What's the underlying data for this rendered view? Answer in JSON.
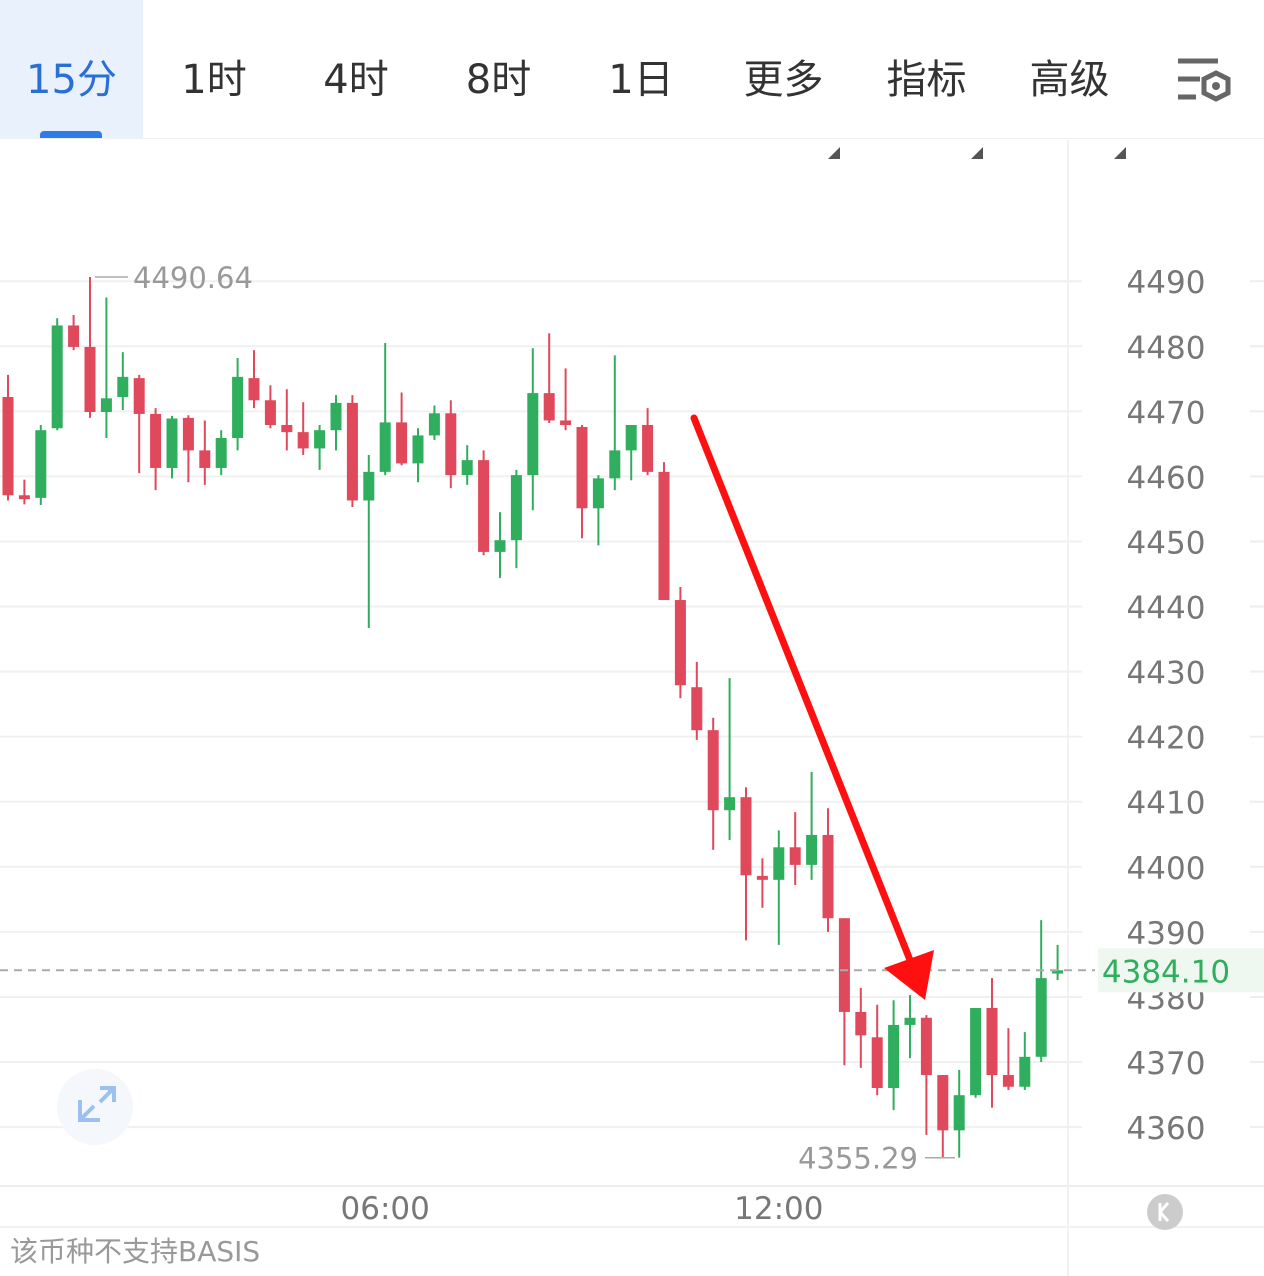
{
  "tabs": [
    "15分",
    "1时",
    "4时",
    "8时",
    "1日",
    "更多",
    "指标",
    "高级"
  ],
  "footnote": "该币种不支持BASIS",
  "chart_data": {
    "type": "candlestick",
    "categories": [
      null,
      null,
      null,
      null,
      null,
      null,
      null,
      null,
      null,
      null,
      null,
      null,
      null,
      null,
      null,
      null,
      null,
      null,
      null,
      null,
      null,
      null,
      null,
      "06:00",
      null,
      null,
      null,
      null,
      null,
      null,
      null,
      null,
      null,
      null,
      null,
      null,
      null,
      null,
      null,
      null,
      null,
      null,
      null,
      null,
      null,
      null,
      null,
      "12:00",
      null,
      null,
      null,
      null,
      null,
      null,
      null,
      null,
      null,
      null,
      null,
      null,
      null,
      null,
      null,
      null,
      null
    ],
    "open": [
      4472.2,
      4457.1,
      4456.7,
      4467.4,
      4483.2,
      4479.9,
      4469.9,
      4472.2,
      4475.1,
      4469.6,
      4461.3,
      4469.0,
      4464.0,
      4461.3,
      4465.9,
      4475.1,
      4471.7,
      4467.9,
      4466.8,
      4464.3,
      4467.1,
      4471.3,
      4456.3,
      4460.7,
      4468.3,
      4462.0,
      4466.3,
      4469.7,
      4460.2,
      4462.5,
      4448.4,
      4450.2,
      4460.2,
      4472.8,
      4468.6,
      4467.6,
      4455.1,
      4459.7,
      4464.0,
      4467.9,
      4460.7,
      4441.0,
      4427.6,
      4421.0,
      4408.7,
      4410.7,
      4398.6,
      4398.0,
      4403.0,
      4400.3,
      4404.9,
      4392.1,
      4377.7,
      4373.8,
      4366.0,
      4375.7,
      4376.8,
      4368.0,
      4359.5,
      4364.9,
      4378.3,
      4368.0,
      4366.2,
      4370.8,
      4383.6
    ],
    "high": [
      4475.6,
      4459.5,
      4467.9,
      4484.3,
      4484.8,
      4490.64,
      4487.5,
      4479.1,
      4475.6,
      4470.5,
      4469.3,
      4469.4,
      4468.6,
      4467.1,
      4478.2,
      4479.4,
      4474.0,
      4473.4,
      4471.4,
      4467.9,
      4472.5,
      4472.5,
      4463.3,
      4480.5,
      4472.9,
      4467.4,
      4470.9,
      4471.7,
      4464.8,
      4464.0,
      4454.5,
      4461.0,
      4479.7,
      4482.0,
      4476.6,
      4467.9,
      4460.2,
      4478.6,
      4467.9,
      4470.5,
      4462.2,
      4443.0,
      4431.5,
      4422.9,
      4429.0,
      4412.2,
      4401.3,
      4405.6,
      4408.4,
      4414.6,
      4409.0,
      4392.1,
      4381.4,
      4378.8,
      4379.5,
      4380.3,
      4377.2,
      4368.0,
      4368.8,
      4378.3,
      4382.9,
      4375.2,
      4374.6,
      4391.8,
      4388.0
    ],
    "low": [
      4456.3,
      4455.7,
      4455.6,
      4467.1,
      4479.4,
      4469.0,
      4465.9,
      4470.2,
      4460.5,
      4457.9,
      4459.7,
      4459.1,
      4458.7,
      4460.2,
      4464.0,
      4470.5,
      4467.4,
      4464.0,
      4463.3,
      4461.0,
      4464.0,
      4455.3,
      4436.7,
      4460.2,
      4461.7,
      4459.1,
      4465.6,
      4458.2,
      4458.7,
      4447.9,
      4444.4,
      4445.9,
      4454.8,
      4468.2,
      4467.1,
      4450.5,
      4449.4,
      4457.9,
      4459.4,
      4460.2,
      4441.0,
      4425.9,
      4419.5,
      4402.6,
      4404.1,
      4388.7,
      4393.7,
      4388.0,
      4397.2,
      4398.0,
      4390.0,
      4369.5,
      4369.1,
      4364.9,
      4362.6,
      4370.6,
      4358.8,
      4355.29,
      4355.3,
      4364.5,
      4363.0,
      4365.7,
      4365.7,
      4370.0,
      4382.6
    ],
    "close": [
      4457.1,
      4456.5,
      4467.1,
      4483.2,
      4479.9,
      4469.9,
      4472.0,
      4475.3,
      4469.6,
      4461.3,
      4468.9,
      4464.0,
      4461.3,
      4465.9,
      4475.3,
      4471.7,
      4467.9,
      4466.8,
      4464.3,
      4467.1,
      4471.3,
      4456.3,
      4460.7,
      4468.3,
      4462.0,
      4466.3,
      4469.7,
      4460.2,
      4462.5,
      4448.4,
      4450.2,
      4460.2,
      4472.8,
      4468.6,
      4467.9,
      4455.1,
      4459.7,
      4464.0,
      4467.9,
      4460.7,
      4441.0,
      4427.9,
      4421.0,
      4408.7,
      4410.7,
      4398.7,
      4398.0,
      4403.0,
      4400.3,
      4404.9,
      4392.1,
      4377.7,
      4374.1,
      4366.0,
      4375.7,
      4376.8,
      4368.0,
      4359.5,
      4364.9,
      4378.3,
      4368.0,
      4366.2,
      4370.8,
      4382.9,
      4384.1
    ],
    "up_color": "#2fae5e",
    "down_color": "#e0485b",
    "ylim": [
      4351.1,
      4511.7
    ],
    "yticks": [
      4360,
      4370,
      4380,
      4390,
      4400,
      4410,
      4420,
      4430,
      4440,
      4450,
      4460,
      4470,
      4480,
      4490
    ],
    "grid": true,
    "max_marker": 4490.64,
    "min_marker": 4355.29,
    "last_price": {
      "value": 4384.1,
      "label": "4384.10"
    }
  }
}
